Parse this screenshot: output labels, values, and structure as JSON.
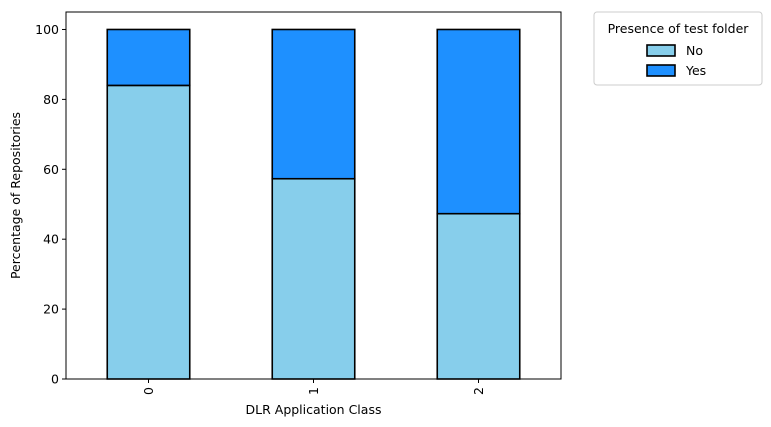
{
  "chart_data": {
    "type": "bar",
    "stacked": true,
    "categories": [
      "0",
      "1",
      "2"
    ],
    "series": [
      {
        "name": "No",
        "values": [
          84,
          57.3,
          47.3
        ],
        "color": "#87CEEB"
      },
      {
        "name": "Yes",
        "values": [
          16,
          42.7,
          52.7
        ],
        "color": "#1E90FF"
      }
    ],
    "title": "",
    "xlabel": "DLR Application Class",
    "ylabel": "Percentage of Repositories",
    "ylim": [
      0,
      105
    ],
    "yticks": [
      0,
      20,
      40,
      60,
      80,
      100
    ],
    "legend": {
      "title": "Presence of test folder",
      "placement": "outside-top-right"
    },
    "grid": false,
    "x_tick_rotation": 90
  }
}
